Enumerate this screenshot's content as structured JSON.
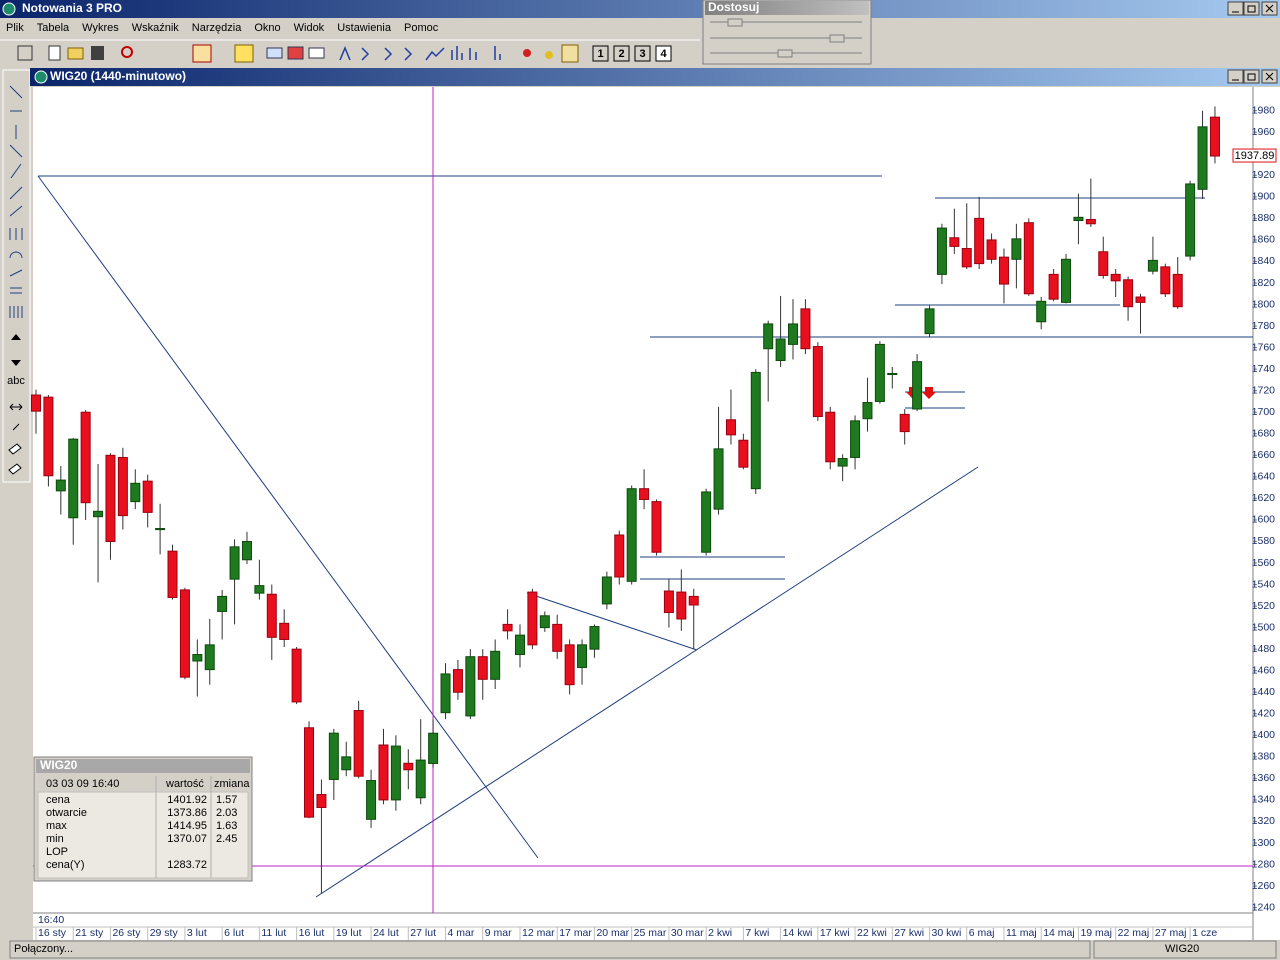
{
  "app": {
    "title": "Notowania 3 PRO",
    "menu": [
      "Plik",
      "Tabela",
      "Wykres",
      "Wskaźnik",
      "Narzędzia",
      "Okno",
      "Widok",
      "Ustawienia",
      "Pomoc"
    ],
    "pages": [
      "1",
      "2",
      "3",
      "4"
    ],
    "text_tool": "abc",
    "panel_title": "Dostosuj"
  },
  "window": {
    "title": "WIG20 (1440-minutowo)"
  },
  "chart_data": {
    "type": "candlestick",
    "time_label": "16:40",
    "categories": [
      "16 sty",
      null,
      null,
      "21 sty",
      null,
      null,
      "26 sty",
      null,
      null,
      "29 sty",
      null,
      null,
      "3 lut",
      null,
      null,
      "6 lut",
      null,
      null,
      "11 lut",
      null,
      null,
      "16 lut",
      null,
      null,
      "19 lut",
      null,
      null,
      "24 lut",
      null,
      null,
      "27 lut",
      null,
      null,
      "4 mar",
      null,
      null,
      "9 mar",
      null,
      null,
      "12 mar",
      null,
      null,
      "17 mar",
      null,
      null,
      "20 mar",
      null,
      null,
      "25 mar",
      null,
      null,
      "30 mar",
      null,
      null,
      "2 kwi",
      null,
      null,
      "7 kwi",
      null,
      null,
      "14 kwi",
      null,
      null,
      "17 kwi",
      null,
      null,
      "22 kwi",
      null,
      null,
      "27 kwi",
      null,
      null,
      "30 kwi",
      null,
      null,
      "6 maj",
      null,
      null,
      "11 maj",
      null,
      null,
      "14 maj",
      null,
      null,
      "19 maj",
      null,
      null,
      "22 maj",
      null,
      null,
      "27 maj",
      null,
      null,
      "1 cze",
      null,
      null
    ],
    "open": [
      1716,
      1714,
      1627,
      1602,
      1700,
      1603,
      1660,
      1658,
      1617,
      1636,
      1591,
      1571,
      1535,
      1469,
      1461,
      1515,
      1545,
      1563,
      1532,
      1531,
      1504,
      1480,
      1407,
      1345,
      1359,
      1368,
      1423,
      1322,
      1391,
      1340,
      1374,
      1342,
      1373.86,
      1421,
      1461,
      1418,
      1473,
      1452,
      1503,
      1475,
      1533,
      1500,
      1503,
      1484,
      1463,
      1480,
      1522,
      1586,
      1543,
      1629,
      1617,
      1534,
      1533,
      1529,
      1570,
      1610,
      1693,
      1674,
      1629,
      1759,
      1748,
      1763,
      1796,
      1761,
      1700,
      1650,
      1658,
      1694,
      1710,
      1735,
      1698,
      1703,
      1773,
      1828,
      1862,
      1852,
      1880,
      1860,
      1844,
      1842,
      1876,
      1784,
      1828,
      1802,
      1878,
      1879,
      1849,
      1828,
      1823,
      1807,
      1831,
      1835,
      1828,
      1845,
      1907,
      1974
    ],
    "high": [
      1721,
      1716,
      1650,
      1676,
      1702,
      1652,
      1662,
      1667,
      1647,
      1642,
      1615,
      1577,
      1537,
      1489,
      1508,
      1535,
      1582,
      1589,
      1563,
      1540,
      1517,
      1482,
      1413,
      1359,
      1406,
      1394,
      1432,
      1368,
      1406,
      1400,
      1387,
      1415,
      1414.95,
      1467,
      1470,
      1480,
      1480,
      1489,
      1517,
      1503,
      1536,
      1515,
      1512,
      1489,
      1489,
      1503,
      1552,
      1590,
      1632,
      1647,
      1619,
      1545,
      1554,
      1536,
      1629,
      1705,
      1721,
      1680,
      1740,
      1785,
      1808,
      1805,
      1805,
      1765,
      1705,
      1661,
      1697,
      1732,
      1766,
      1742,
      1703,
      1754,
      1799,
      1875,
      1889,
      1894,
      1900,
      1866,
      1852,
      1875,
      1880,
      1807,
      1833,
      1847,
      1903,
      1917,
      1863,
      1833,
      1826,
      1810,
      1863,
      1838,
      1844,
      1915,
      1980,
      1984
    ],
    "low": [
      1680,
      1631,
      1605,
      1577,
      1600,
      1542,
      1563,
      1591,
      1610,
      1593,
      1568,
      1526,
      1452,
      1436,
      1447,
      1489,
      1503,
      1559,
      1526,
      1470,
      1482,
      1429,
      1323,
      1253,
      1340,
      1362,
      1360,
      1314,
      1336,
      1330,
      1350,
      1336,
      1370.07,
      1415,
      1433,
      1415,
      1433,
      1443,
      1489,
      1463,
      1480,
      1496,
      1471,
      1438,
      1447,
      1472,
      1517,
      1540,
      1540,
      1610,
      1567,
      1500,
      1497,
      1480,
      1567,
      1605,
      1670,
      1647,
      1624,
      1710,
      1742,
      1749,
      1754,
      1692,
      1647,
      1636,
      1647,
      1682,
      1708,
      1722,
      1670,
      1701,
      1770,
      1819,
      1847,
      1833,
      1833,
      1838,
      1801,
      1815,
      1808,
      1777,
      1803,
      1801,
      1856,
      1872,
      1824,
      1807,
      1785,
      1773,
      1828,
      1807,
      1796,
      1841,
      1898,
      1931
    ],
    "close": [
      1701,
      1641,
      1637,
      1675,
      1616,
      1608,
      1580,
      1604,
      1634,
      1607,
      1592,
      1528,
      1454,
      1475,
      1484,
      1529,
      1575,
      1580,
      1539,
      1491,
      1489,
      1431,
      1324,
      1333,
      1402,
      1380,
      1362,
      1358,
      1340,
      1390,
      1368,
      1377,
      1401.92,
      1457,
      1440,
      1473,
      1452,
      1478,
      1497,
      1493,
      1484,
      1511,
      1478,
      1447,
      1484,
      1501,
      1547,
      1547,
      1629,
      1619,
      1570,
      1514,
      1508,
      1521,
      1626,
      1666,
      1679,
      1649,
      1737,
      1782,
      1768,
      1782,
      1759,
      1696,
      1654,
      1657,
      1692,
      1709,
      1763,
      1736,
      1682,
      1747,
      1796,
      1871,
      1854,
      1835,
      1838,
      1842,
      1819,
      1861,
      1810,
      1803,
      1805,
      1842,
      1881,
      1875,
      1827,
      1822,
      1798,
      1802,
      1841,
      1810,
      1798,
      1912,
      1965,
      1937.89
    ],
    "up_color": "#1f7a1f",
    "down_color": "#e8101e",
    "ylim": [
      1235,
      2002
    ],
    "yticks": [
      1240,
      1260,
      1280,
      1300,
      1320,
      1340,
      1360,
      1380,
      1400,
      1420,
      1440,
      1460,
      1480,
      1500,
      1520,
      1540,
      1560,
      1580,
      1600,
      1620,
      1640,
      1660,
      1680,
      1700,
      1720,
      1740,
      1760,
      1780,
      1800,
      1820,
      1840,
      1860,
      1880,
      1900,
      1920,
      1940,
      1960,
      1980
    ]
  },
  "info": {
    "title": "WIG20",
    "datetime": "03 03 09 16:40",
    "columns": [
      "wartość",
      "zmiana"
    ],
    "rows": [
      {
        "label": "cena",
        "value": 1401.92,
        "change": 1.57
      },
      {
        "label": "otwarcie",
        "value": 1373.86,
        "change": 2.03
      },
      {
        "label": "max",
        "value": 1414.95,
        "change": 1.63
      },
      {
        "label": "min",
        "value": 1370.07,
        "change": 2.45
      },
      {
        "label": "LOP"
      },
      {
        "label": "cena(Y)",
        "value": 1283.72
      }
    ]
  },
  "status": {
    "left": "Połączony...",
    "right": "WIG20"
  }
}
